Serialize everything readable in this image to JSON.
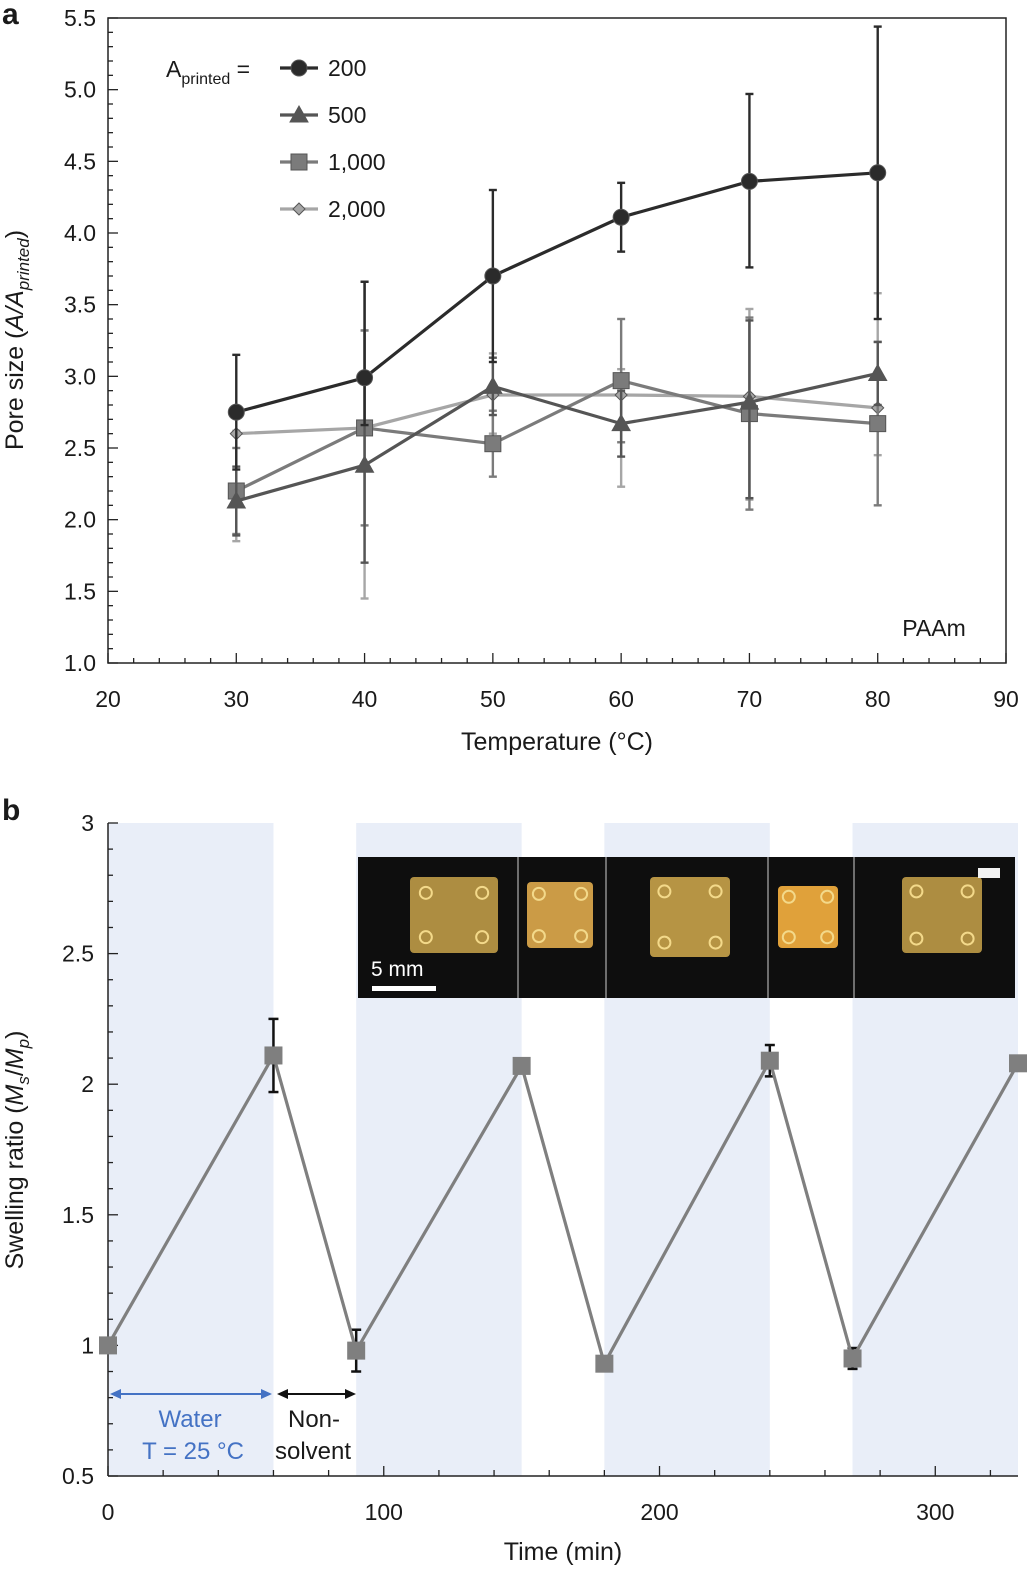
{
  "panel_a": {
    "letter": "a",
    "legend_prefix": "A",
    "legend_prefix_sub": "printed",
    "legend_eq": " =",
    "annotation": "PAAm",
    "ylabel_prefix": "Pore size (",
    "ylabel_italic": "A/A",
    "ylabel_sub": "printed",
    "ylabel_suffix": ")"
  },
  "panel_b": {
    "letter": "b",
    "ylabel_prefix": "Swelling ratio (",
    "ylabel_m1": "M",
    "ylabel_s": "s",
    "ylabel_slash": "/",
    "ylabel_m2": "M",
    "ylabel_p": "p",
    "ylabel_suffix": ")",
    "water_line1": "Water",
    "water_line2": "T = 25 °C",
    "nonsolvent_line1": "Non-",
    "nonsolvent_line2": "solvent",
    "scalebar_label": "5 mm"
  },
  "colors": {
    "s200": "#2b2b2b",
    "s500": "#555555",
    "s1000": "#7b7b7b",
    "s2000": "#a6a6a6",
    "swelling": "#7f7f7f",
    "shade": "#e9eef8",
    "water_text": "#4472c4",
    "inset_bg": "#0e0e0e",
    "gel": "#c9a34a"
  },
  "chart_data": [
    {
      "type": "line",
      "xlabel": "Temperature (°C)",
      "ylabel": "Pore size (A/Aprinted)",
      "xlim": [
        20,
        90
      ],
      "ylim": [
        1.0,
        5.5
      ],
      "xticks": [
        20,
        30,
        40,
        50,
        60,
        70,
        80,
        90
      ],
      "yticks": [
        "1.0",
        "1.5",
        "2.0",
        "2.5",
        "3.0",
        "3.5",
        "4.0",
        "4.5",
        "5.0",
        "5.5"
      ],
      "legend_title": "Aprinted =",
      "legend_position": "top-left",
      "x": [
        30,
        40,
        50,
        60,
        70,
        80
      ],
      "series": [
        {
          "name": "200",
          "marker": "circle",
          "values": [
            2.75,
            2.99,
            3.7,
            4.11,
            4.36,
            4.42
          ],
          "err_low": [
            2.35,
            2.66,
            3.1,
            3.87,
            3.76,
            3.4
          ],
          "err_high": [
            3.15,
            3.66,
            4.3,
            4.35,
            4.97,
            5.44
          ]
        },
        {
          "name": "500",
          "marker": "triangle",
          "values": [
            2.13,
            2.38,
            2.93,
            2.67,
            2.82,
            3.02
          ],
          "err_low": [
            1.89,
            1.7,
            2.73,
            2.44,
            2.15,
            2.8
          ],
          "err_high": [
            2.37,
            3.66,
            3.13,
            2.9,
            3.39,
            3.24
          ]
        },
        {
          "name": "1,000",
          "marker": "square",
          "values": [
            2.2,
            2.64,
            2.53,
            2.97,
            2.74,
            2.67
          ],
          "err_low": [
            1.9,
            1.96,
            2.3,
            2.54,
            2.07,
            2.1
          ],
          "err_high": [
            2.5,
            3.32,
            2.76,
            3.4,
            3.41,
            3.24
          ]
        },
        {
          "name": "2,000",
          "marker": "diamond",
          "values": [
            2.6,
            2.64,
            2.87,
            2.87,
            2.86,
            2.78
          ],
          "err_low": [
            1.85,
            1.45,
            2.6,
            2.23,
            2.14,
            2.45
          ],
          "err_high": [
            2.62,
            3.32,
            3.16,
            3.05,
            3.47,
            3.58
          ]
        }
      ]
    },
    {
      "type": "line",
      "xlabel": "Time (min)",
      "ylabel": "Swelling ratio (Ms/Mp)",
      "xlim": [
        0,
        330
      ],
      "ylim": [
        0.5,
        3
      ],
      "xticks": [
        0,
        100,
        200,
        300
      ],
      "yticks": [
        "0.5",
        "1",
        "1.5",
        "2",
        "2.5",
        "3"
      ],
      "shaded_intervals_water": [
        [
          0,
          60
        ],
        [
          90,
          150
        ],
        [
          180,
          240
        ],
        [
          270,
          330
        ]
      ],
      "series": [
        {
          "name": "",
          "x": [
            0,
            60,
            90,
            150,
            180,
            240,
            270,
            330
          ],
          "values": [
            1.0,
            2.11,
            0.98,
            2.07,
            0.93,
            2.09,
            0.95,
            2.08
          ],
          "err": [
            0,
            0.14,
            0.08,
            0,
            0,
            0.06,
            0.04,
            0
          ]
        }
      ]
    }
  ]
}
